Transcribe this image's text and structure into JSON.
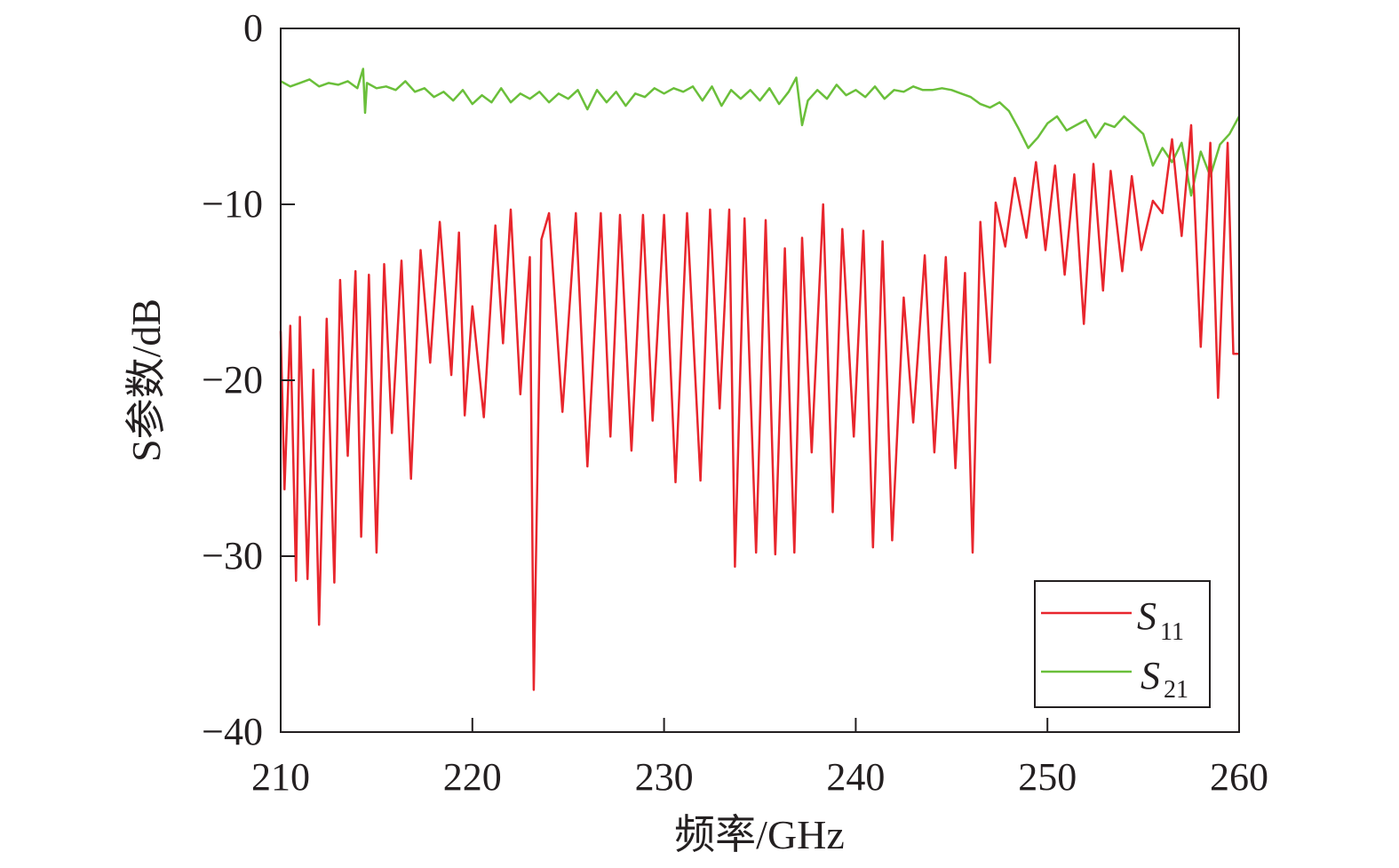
{
  "chart_data": {
    "type": "line",
    "title": "",
    "xlabel": "频率/GHz",
    "ylabel": "S参数/dB",
    "xlim": [
      210,
      260
    ],
    "ylim": [
      -40,
      0
    ],
    "xticks": [
      210,
      220,
      230,
      240,
      250,
      260
    ],
    "yticks": [
      0,
      -10,
      -20,
      -30,
      -40
    ],
    "xtick_labels": [
      "210",
      "220",
      "230",
      "240",
      "250",
      "260"
    ],
    "ytick_labels": [
      "0",
      "−10",
      "−20",
      "−30",
      "−40"
    ],
    "grid": false,
    "legend_position": "bottom-right",
    "colors": {
      "S11": "#e8262d",
      "S21": "#6abf3a",
      "axis": "#231f20"
    },
    "series": [
      {
        "name": "S11",
        "legend_main": "S",
        "legend_sub": "11",
        "x": [
          210.0,
          210.2,
          210.5,
          210.8,
          211.0,
          211.4,
          211.7,
          212.0,
          212.4,
          212.8,
          213.1,
          213.5,
          213.9,
          214.2,
          214.6,
          215.0,
          215.4,
          215.8,
          216.3,
          216.8,
          217.3,
          217.8,
          218.3,
          218.9,
          219.3,
          219.6,
          220.0,
          220.6,
          221.2,
          221.6,
          222.0,
          222.5,
          223.0,
          223.2,
          223.6,
          224.0,
          224.7,
          225.4,
          226.0,
          226.7,
          227.2,
          227.7,
          228.3,
          228.9,
          229.4,
          230.0,
          230.6,
          231.2,
          231.9,
          232.4,
          232.9,
          233.4,
          233.7,
          234.2,
          234.8,
          235.3,
          235.8,
          236.3,
          236.8,
          237.2,
          237.7,
          238.3,
          238.8,
          239.3,
          239.9,
          240.4,
          240.9,
          241.4,
          241.9,
          242.5,
          243.0,
          243.6,
          244.1,
          244.7,
          245.2,
          245.7,
          246.1,
          246.5,
          247.0,
          247.3,
          247.8,
          248.3,
          248.9,
          249.4,
          249.9,
          250.4,
          250.9,
          251.4,
          251.9,
          252.4,
          252.9,
          253.3,
          253.9,
          254.4,
          254.9,
          255.5,
          256.0,
          256.5,
          257.0,
          257.5,
          258.0,
          258.5,
          258.9,
          259.4,
          259.7,
          260.0
        ],
        "values": [
          -17.2,
          -26.2,
          -16.9,
          -31.4,
          -16.4,
          -31.3,
          -19.4,
          -33.9,
          -16.5,
          -31.5,
          -14.3,
          -24.3,
          -13.8,
          -28.9,
          -14.0,
          -29.8,
          -13.4,
          -23.0,
          -13.2,
          -25.6,
          -12.6,
          -19.0,
          -11.0,
          -19.7,
          -11.6,
          -22.0,
          -15.8,
          -22.1,
          -11.2,
          -17.9,
          -10.3,
          -20.8,
          -13.0,
          -37.6,
          -12.0,
          -10.5,
          -21.8,
          -10.5,
          -24.9,
          -10.5,
          -23.2,
          -10.6,
          -24.0,
          -10.6,
          -22.3,
          -10.6,
          -25.8,
          -10.5,
          -25.7,
          -10.3,
          -21.6,
          -10.3,
          -30.6,
          -10.8,
          -29.8,
          -10.9,
          -29.9,
          -12.5,
          -29.8,
          -11.9,
          -24.1,
          -10.0,
          -27.5,
          -11.4,
          -23.2,
          -11.5,
          -29.5,
          -12.1,
          -29.1,
          -15.3,
          -22.4,
          -12.9,
          -24.1,
          -13.0,
          -25.0,
          -13.9,
          -29.8,
          -11.0,
          -19.0,
          -9.9,
          -12.4,
          -8.5,
          -11.9,
          -7.6,
          -12.6,
          -7.8,
          -14.0,
          -8.3,
          -16.8,
          -7.7,
          -14.9,
          -8.1,
          -13.8,
          -8.4,
          -12.6,
          -9.8,
          -10.5,
          -6.3,
          -11.8,
          -5.5,
          -18.1,
          -6.5,
          -21.0,
          -6.5,
          -18.5,
          -18.5
        ]
      },
      {
        "name": "S21",
        "legend_main": "S",
        "legend_sub": "21",
        "x": [
          210.0,
          210.5,
          211.0,
          211.5,
          212.0,
          212.5,
          213.0,
          213.5,
          214.0,
          214.3,
          214.4,
          214.5,
          215.0,
          215.5,
          216.0,
          216.5,
          217.0,
          217.5,
          218.0,
          218.5,
          219.0,
          219.5,
          220.0,
          220.5,
          221.0,
          221.5,
          222.0,
          222.5,
          223.0,
          223.5,
          224.0,
          224.5,
          225.0,
          225.5,
          226.0,
          226.5,
          227.0,
          227.5,
          228.0,
          228.5,
          229.0,
          229.5,
          230.0,
          230.5,
          231.0,
          231.5,
          232.0,
          232.5,
          233.0,
          233.5,
          234.0,
          234.5,
          235.0,
          235.5,
          236.0,
          236.5,
          236.9,
          237.2,
          237.5,
          238.0,
          238.5,
          239.0,
          239.5,
          240.0,
          240.5,
          241.0,
          241.5,
          242.0,
          242.5,
          243.0,
          243.5,
          244.0,
          244.5,
          245.0,
          245.5,
          246.0,
          246.5,
          247.0,
          247.5,
          248.0,
          248.5,
          249.0,
          249.5,
          250.0,
          250.5,
          251.0,
          251.5,
          252.0,
          252.5,
          253.0,
          253.5,
          254.0,
          254.5,
          255.0,
          255.5,
          256.0,
          256.5,
          257.0,
          257.5,
          258.0,
          258.5,
          259.0,
          259.5,
          260.0
        ],
        "values": [
          -3.0,
          -3.3,
          -3.1,
          -2.9,
          -3.3,
          -3.1,
          -3.2,
          -3.0,
          -3.4,
          -2.3,
          -4.8,
          -3.1,
          -3.4,
          -3.3,
          -3.5,
          -3.0,
          -3.6,
          -3.4,
          -3.9,
          -3.6,
          -4.1,
          -3.5,
          -4.3,
          -3.8,
          -4.2,
          -3.4,
          -4.2,
          -3.7,
          -4.0,
          -3.6,
          -4.2,
          -3.7,
          -4.0,
          -3.5,
          -4.6,
          -3.5,
          -4.2,
          -3.6,
          -4.4,
          -3.7,
          -3.9,
          -3.4,
          -3.7,
          -3.4,
          -3.6,
          -3.3,
          -4.1,
          -3.3,
          -4.4,
          -3.5,
          -4.0,
          -3.5,
          -4.1,
          -3.4,
          -4.3,
          -3.6,
          -2.8,
          -5.5,
          -4.1,
          -3.5,
          -4.0,
          -3.2,
          -3.8,
          -3.5,
          -3.9,
          -3.3,
          -4.0,
          -3.5,
          -3.6,
          -3.3,
          -3.5,
          -3.5,
          -3.4,
          -3.5,
          -3.7,
          -3.9,
          -4.3,
          -4.5,
          -4.2,
          -4.7,
          -5.7,
          -6.8,
          -6.2,
          -5.4,
          -5.0,
          -5.8,
          -5.5,
          -5.2,
          -6.2,
          -5.4,
          -5.6,
          -5.0,
          -5.5,
          -6.0,
          -7.8,
          -6.8,
          -7.6,
          -6.5,
          -9.5,
          -7.0,
          -8.4,
          -6.6,
          -6.0,
          -5.0
        ]
      }
    ]
  }
}
